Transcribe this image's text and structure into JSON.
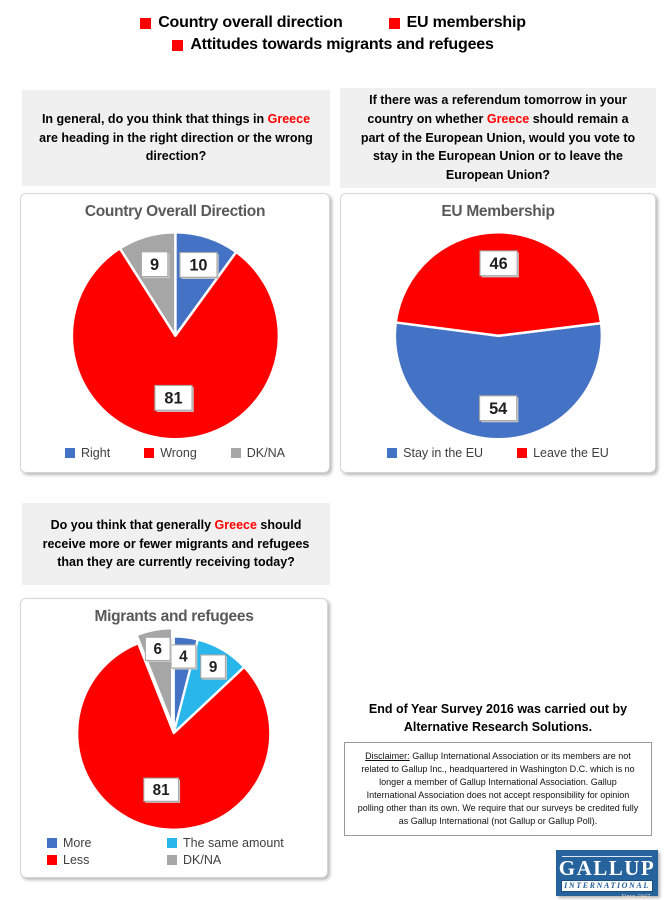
{
  "header": {
    "bullet_color": "#FF0000",
    "items": [
      {
        "label": "Country overall direction"
      },
      {
        "label": "EU membership"
      },
      {
        "label": "Attitudes towards migrants and refugees"
      }
    ]
  },
  "questions": {
    "direction": {
      "pre": "In general, do you think that things in ",
      "highlight": "Greece",
      "post": " are heading in the right direction or the wrong direction?"
    },
    "eu": {
      "pre": "If there was a referendum tomorrow in your country on whether ",
      "highlight": "Greece",
      "post": " should remain a part of the European Union, would you vote to stay in the European Union or to leave the European Union?"
    },
    "migrants": {
      "pre": "Do you think that generally ",
      "highlight": "Greece",
      "post": " should receive more or fewer migrants and refugees than they are currently receiving today?"
    }
  },
  "chart_data": [
    {
      "type": "pie",
      "title": "Country Overall Direction",
      "rotation": 0,
      "legend_position": "bottom",
      "legend_columns": 3,
      "small_factor": 0.72,
      "slices": [
        {
          "label": "Right",
          "value": 10,
          "color": "#4472C4"
        },
        {
          "label": "Wrong",
          "value": 81,
          "color": "#FF0000"
        },
        {
          "label": "DK/NA",
          "value": 9,
          "color": "#A6A6A6"
        }
      ]
    },
    {
      "type": "pie",
      "title": "EU Membership",
      "rotation": 83,
      "legend_position": "bottom",
      "legend_columns": 2,
      "small_factor": 0.72,
      "slices": [
        {
          "label": "Stay in the EU",
          "value": 54,
          "color": "#4472C4"
        },
        {
          "label": "Leave the EU",
          "value": 46,
          "color": "#FF0000"
        }
      ]
    },
    {
      "type": "pie",
      "title": "Migrants and refugees",
      "rotation": 0,
      "legend_position": "bottom",
      "legend_columns": 2,
      "small_factor": 0.8,
      "slices": [
        {
          "label": "More",
          "value": 4,
          "color": "#4472C4"
        },
        {
          "label": "The same amount",
          "value": 9,
          "color": "#29B6EA"
        },
        {
          "label": "Less",
          "value": 81,
          "color": "#FF0000"
        },
        {
          "label": "DK/NA",
          "value": 6,
          "color": "#A6A6A6",
          "exploded": true
        }
      ]
    }
  ],
  "footer": {
    "survey_note": "End of Year Survey 2016 was carried out by\nAlternative Research Solutions.",
    "disclaimer_label": "Disclaimer:",
    "disclaimer_text": " Gallup International Association or its members are not related to Gallup Inc., headquartered in Washington D.C. which is no longer a member of Gallup International Association. Gallup International Association does not accept responsibility for opinion polling other than its own. We require that our surveys be credited fully as Gallup International (not Gallup or Gallup Poll).",
    "logo": {
      "line1": "GALLUP",
      "line2": "INTERNATIONAL",
      "line3": "Since 1947",
      "bg_color": "#26629B"
    }
  }
}
